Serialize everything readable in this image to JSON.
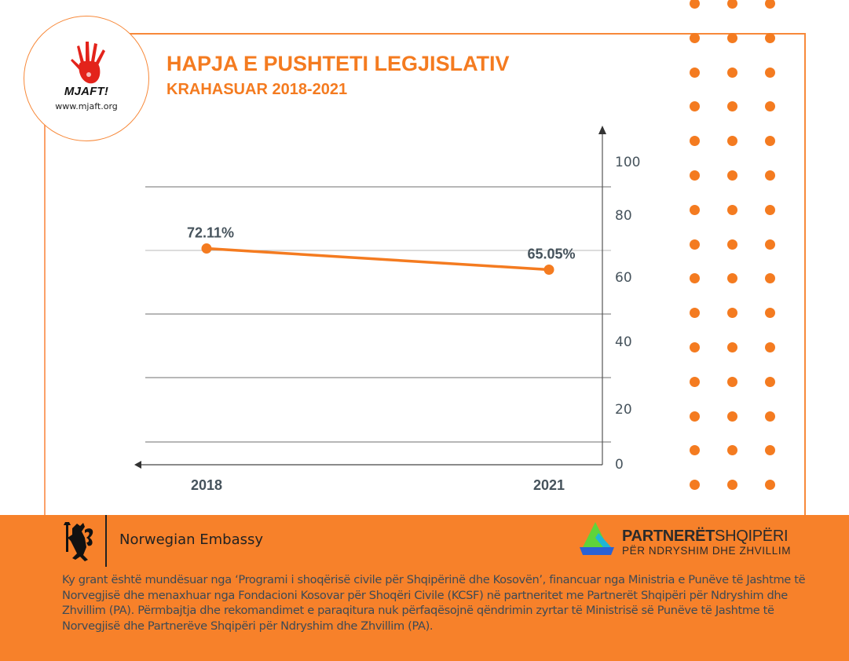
{
  "logo": {
    "name": "MJAFT!",
    "url": "www.mjaft.org",
    "hand_color": "#e3231b"
  },
  "header": {
    "title": "HAPJA E PUSHTETI LEGJISLATIV",
    "subtitle": "KRAHASUAR 2018-2021"
  },
  "colors": {
    "accent": "#f47b20",
    "footer_bg": "#f7812a",
    "text_dark": "#46535c"
  },
  "chart_data": {
    "type": "line",
    "title": "HAPJA E PUSHTETI LEGJISLATIV KRAHASUAR 2018-2021",
    "categories": [
      "2018",
      "2021"
    ],
    "series": [
      {
        "name": "Hapja e pushteti legjislativ",
        "values": [
          72.11,
          65.05
        ],
        "labels": [
          "72.11%",
          "65.05%"
        ],
        "color": "#f47b20"
      }
    ],
    "xlabel": "",
    "ylabel": "",
    "ylim": [
      0,
      100
    ],
    "yticks": [
      0,
      20,
      40,
      60,
      80,
      100
    ],
    "grid": true,
    "legend": "none",
    "y_axis_side": "right",
    "x_axis_direction": "right-to-left arrow"
  },
  "footer": {
    "embassy_label": "Norwegian Embassy",
    "partner_name_bold": "PARTNERËT",
    "partner_name_light": "SHQIPËRI",
    "partner_tagline": "PËR NDRYSHIM DHE ZHVILLIM",
    "disclaimer": "Ky grant është mundësuar nga ‘Programi i shoqërisë civile për Shqipërinë dhe Kosovën’, financuar nga Ministria e Punëve të Jashtme të Norvegjisë dhe menaxhuar nga Fondacioni Kosovar për Shoqëri Civile (KCSF) në partneritet me Partnerët Shqipëri për Ndryshim dhe Zhvillim (PA). Përmbajtja dhe rekomandimet e paraqitura nuk përfaqësojnë qëndrimin zyrtar të Ministrisë së Punëve të Jashtme të Norvegjisë dhe Partnerëve Shqipëri për Ndryshim dhe Zhvillim (PA)."
  }
}
